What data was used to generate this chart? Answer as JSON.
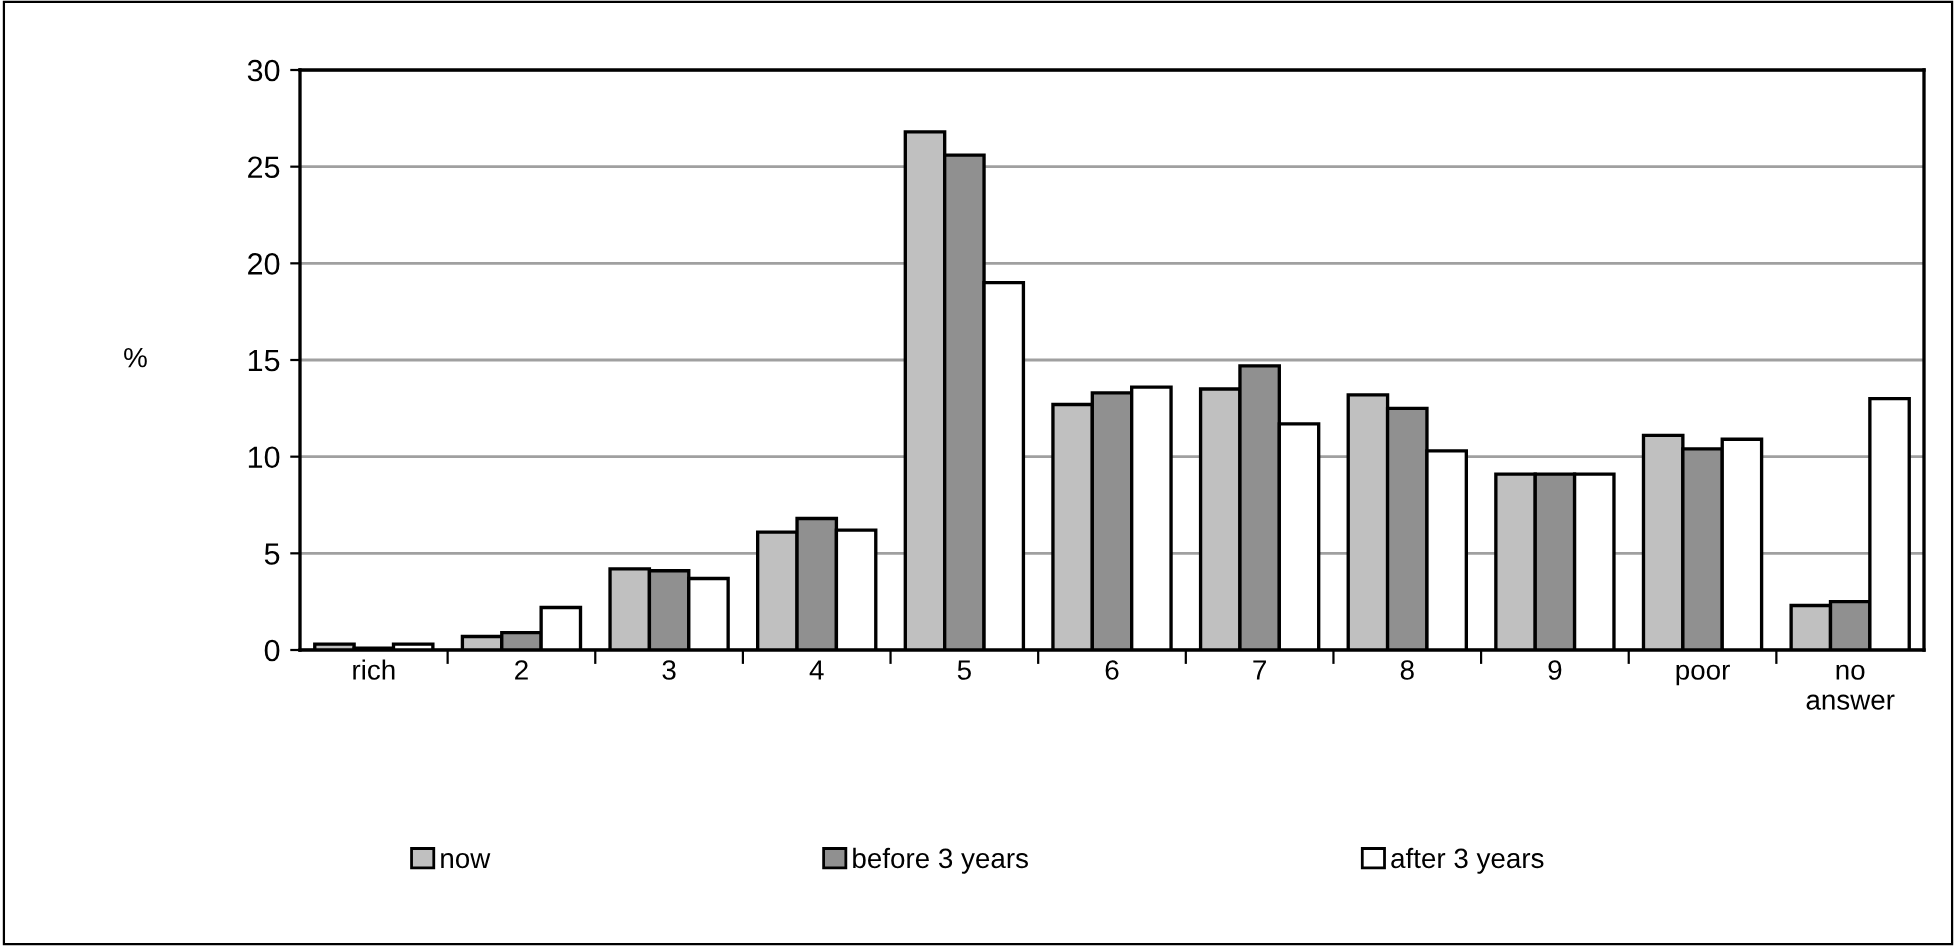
{
  "chart_data": {
    "type": "bar",
    "ylabel": "%",
    "categories": [
      "rich",
      "2",
      "3",
      "4",
      "5",
      "6",
      "7",
      "8",
      "9",
      "poor",
      "no\nanswer"
    ],
    "series": [
      {
        "name": "now",
        "color": "#c0c0c0",
        "values": [
          0.3,
          0.7,
          4.2,
          6.1,
          26.8,
          12.7,
          13.5,
          13.2,
          9.1,
          11.1,
          2.3
        ]
      },
      {
        "name": "before 3 years",
        "color": "#909090",
        "values": [
          0.1,
          0.9,
          4.1,
          6.8,
          25.6,
          13.3,
          14.7,
          12.5,
          9.1,
          10.4,
          2.5
        ]
      },
      {
        "name": "after 3 years",
        "color": "#ffffff",
        "values": [
          0.3,
          2.2,
          3.7,
          6.2,
          19.0,
          13.6,
          11.7,
          10.3,
          9.1,
          10.9,
          13.0
        ]
      }
    ],
    "ylim": [
      0,
      30
    ],
    "yticks": [
      0,
      5,
      10,
      15,
      20,
      25,
      30
    ],
    "grid": "y",
    "legend": "bottom"
  }
}
